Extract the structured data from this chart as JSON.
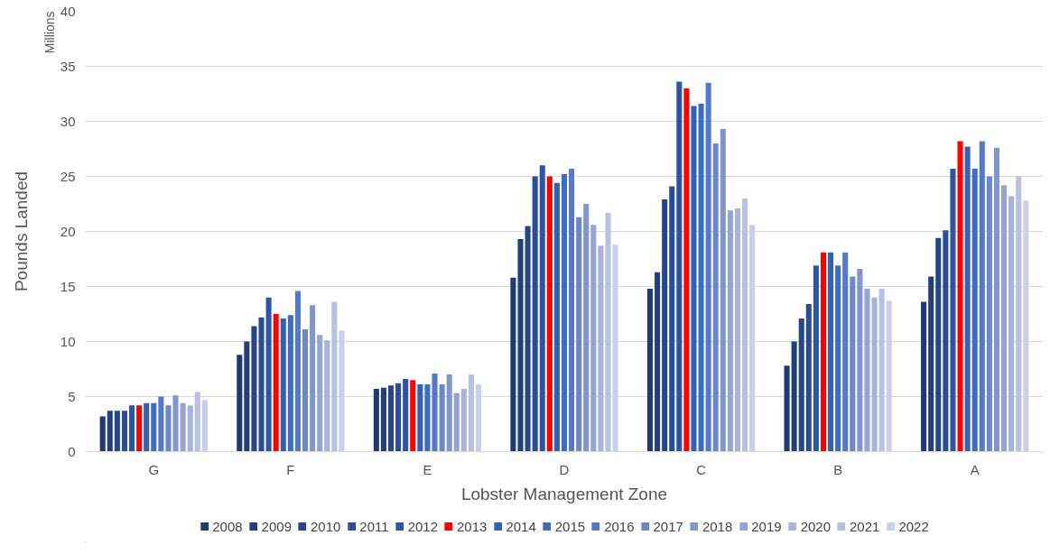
{
  "chart_data": {
    "type": "bar",
    "xlabel": "Lobster Management Zone",
    "ylabel": "Pounds Landed",
    "annotations": [
      "Millions"
    ],
    "categories": [
      "G",
      "F",
      "E",
      "D",
      "C",
      "B",
      "A"
    ],
    "ylim": [
      0,
      40
    ],
    "yticks": [
      0,
      5,
      10,
      15,
      20,
      25,
      30,
      35,
      40
    ],
    "grid": "y",
    "legend": "bottom",
    "series": [
      {
        "name": "2008",
        "color": "#1f3a6e",
        "values": [
          3.2,
          8.8,
          5.7,
          15.8,
          14.8,
          7.8,
          13.6
        ]
      },
      {
        "name": "2009",
        "color": "#223f7a",
        "values": [
          3.7,
          10.0,
          5.8,
          19.3,
          16.3,
          10.0,
          15.9
        ]
      },
      {
        "name": "2010",
        "color": "#264687",
        "values": [
          3.7,
          11.4,
          6.0,
          20.5,
          22.9,
          12.1,
          19.4
        ]
      },
      {
        "name": "2011",
        "color": "#2a4d94",
        "values": [
          3.7,
          12.2,
          6.2,
          25.0,
          24.1,
          13.4,
          20.1
        ]
      },
      {
        "name": "2012",
        "color": "#2e55a3",
        "values": [
          4.2,
          14.0,
          6.6,
          26.0,
          33.6,
          16.9,
          25.7
        ]
      },
      {
        "name": "2013",
        "color": "#ff0000",
        "values": [
          4.2,
          12.5,
          6.5,
          25.0,
          33.0,
          18.1,
          28.2
        ]
      },
      {
        "name": "2014",
        "color": "#3561b5",
        "values": [
          4.4,
          12.1,
          6.1,
          24.4,
          31.4,
          18.1,
          27.7
        ]
      },
      {
        "name": "2015",
        "color": "#3d6cc4",
        "values": [
          4.4,
          12.4,
          6.1,
          25.2,
          31.6,
          16.9,
          25.7
        ]
      },
      {
        "name": "2016",
        "color": "#5479c8",
        "values": [
          5.0,
          14.6,
          7.1,
          25.7,
          33.5,
          18.1,
          28.2
        ]
      },
      {
        "name": "2017",
        "color": "#6d88c9",
        "values": [
          4.2,
          11.1,
          6.1,
          21.3,
          28.0,
          15.9,
          25.0
        ]
      },
      {
        "name": "2018",
        "color": "#8197cc",
        "values": [
          5.1,
          13.3,
          7.0,
          22.5,
          29.3,
          16.6,
          27.6
        ]
      },
      {
        "name": "2019",
        "color": "#95a5d3",
        "values": [
          4.4,
          10.6,
          5.3,
          20.6,
          21.9,
          14.8,
          24.2
        ]
      },
      {
        "name": "2020",
        "color": "#a7b3da",
        "values": [
          4.2,
          10.1,
          5.7,
          18.7,
          22.1,
          14.0,
          23.2
        ]
      },
      {
        "name": "2021",
        "color": "#b8c1e1",
        "values": [
          5.4,
          13.6,
          7.0,
          21.7,
          23.0,
          14.8,
          25.0
        ]
      },
      {
        "name": "2022",
        "color": "#c8cfe8",
        "values": [
          4.7,
          11.0,
          6.1,
          18.8,
          20.6,
          13.7,
          22.8
        ]
      }
    ]
  }
}
